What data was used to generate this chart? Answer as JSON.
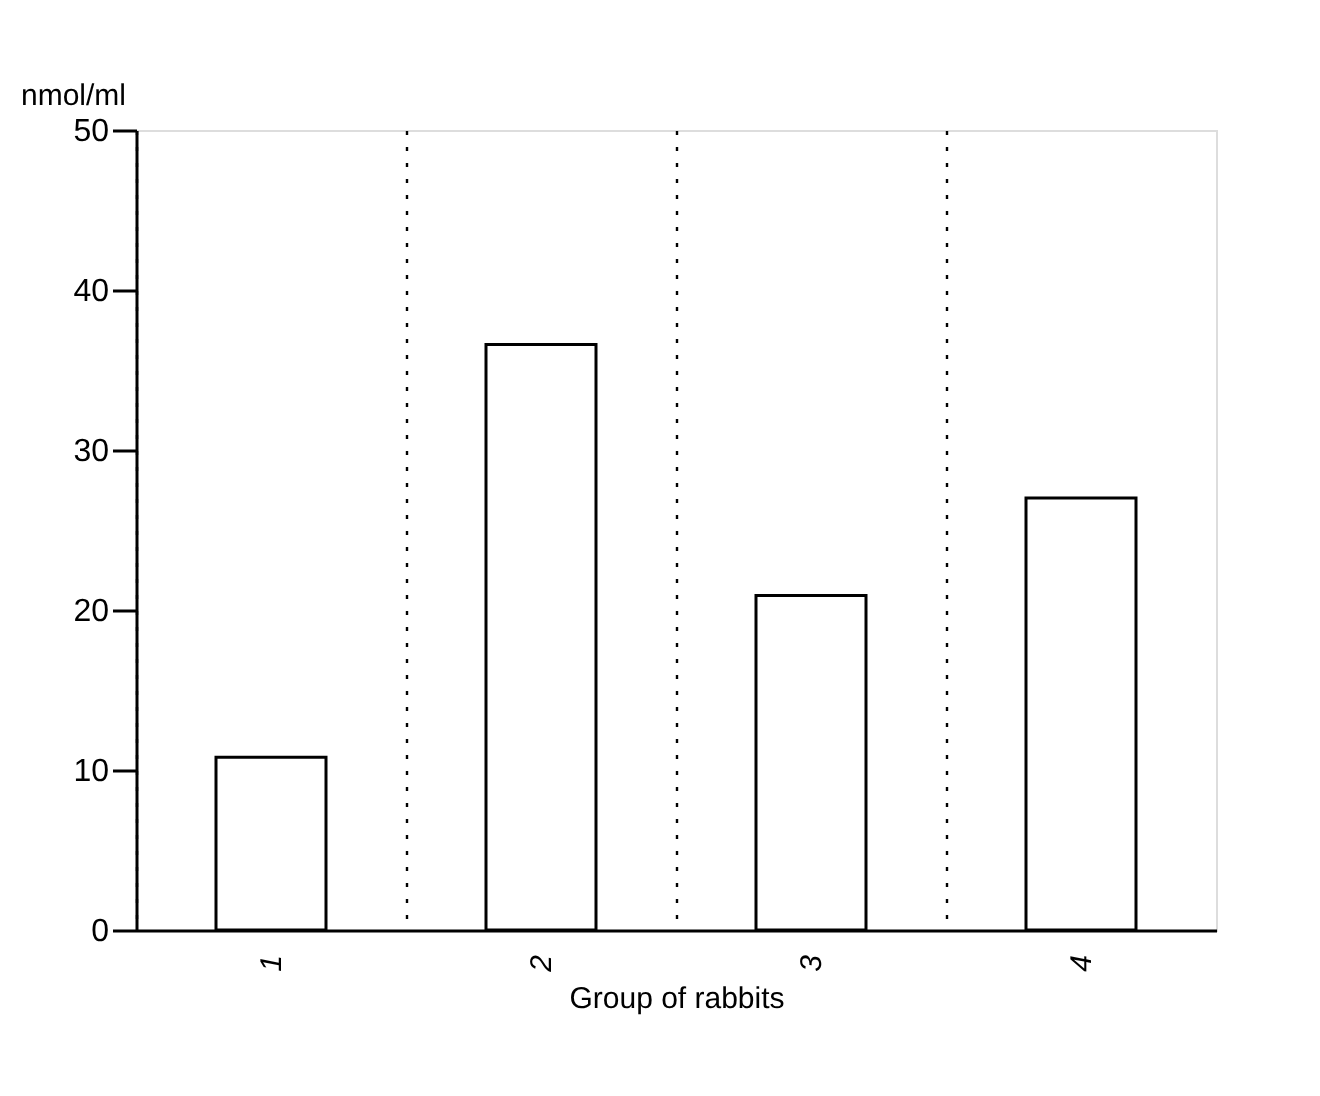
{
  "chart_data": {
    "type": "bar",
    "xlabel": "Group of rabbits",
    "ylabel": "nmol/ml",
    "categories": [
      "1",
      "2",
      "3",
      "4"
    ],
    "values": [
      10.8,
      36.6,
      20.9,
      27.0
    ],
    "color": "#ffffff",
    "ylim": [
      0,
      50
    ],
    "yticks": [
      0,
      10,
      20,
      30,
      40,
      50
    ],
    "grid": "x"
  }
}
